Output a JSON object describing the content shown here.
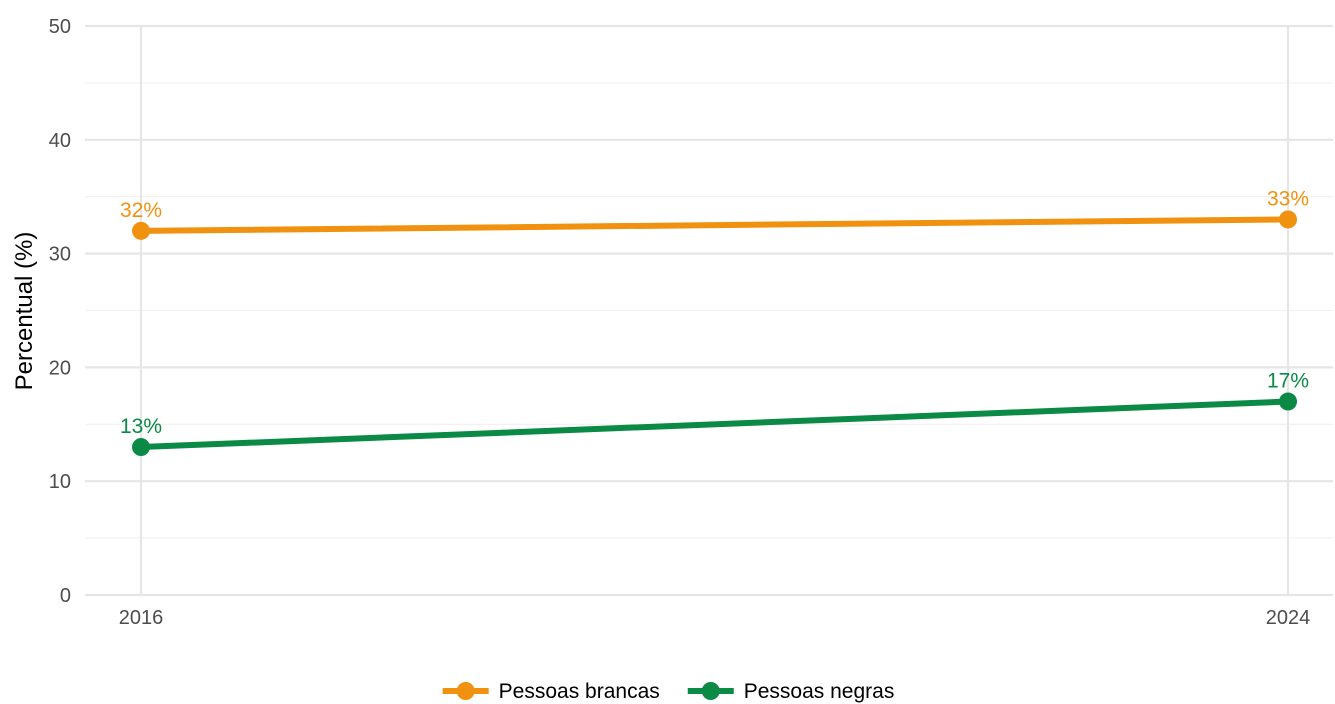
{
  "chart_data": {
    "type": "line",
    "x": [
      "2016",
      "2024"
    ],
    "series": [
      {
        "name": "Pessoas brancas",
        "color": "#F0920F",
        "values": [
          32,
          33
        ],
        "labels": [
          "32%",
          "33%"
        ]
      },
      {
        "name": "Pessoas negras",
        "color": "#0A8A45",
        "values": [
          13,
          17
        ],
        "labels": [
          "13%",
          "17%"
        ]
      }
    ],
    "title": "",
    "xlabel": "",
    "ylabel": "Percentual (%)",
    "ylim": [
      0,
      50
    ],
    "yticks": [
      "0",
      "10",
      "20",
      "30",
      "40",
      "50"
    ],
    "grid": true,
    "legend_position": "bottom"
  }
}
